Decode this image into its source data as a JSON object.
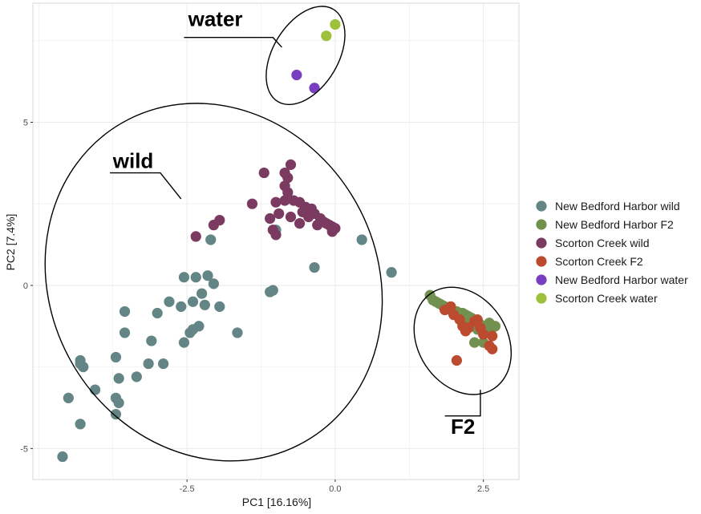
{
  "chart_data": {
    "type": "scatter",
    "title": "",
    "xlabel": "PC1 [16.16%]",
    "ylabel": "PC2 [7.4%]",
    "xlim": [
      -5.1,
      3.1
    ],
    "ylim": [
      -5.95,
      8.65
    ],
    "x_ticks": [
      -2.5,
      0.0,
      2.5
    ],
    "x_tick_labels": [
      "-2.5",
      "0.0",
      "2.5"
    ],
    "y_ticks": [
      -5,
      0,
      5
    ],
    "y_tick_labels": [
      "-5",
      "0",
      "5"
    ],
    "grid": true,
    "legend_position": "right",
    "series": [
      {
        "name": "New Bedford Harbor wild",
        "color": "#648585",
        "points": [
          [
            -4.6,
            -5.25
          ],
          [
            -4.5,
            -3.45
          ],
          [
            -4.3,
            -2.3
          ],
          [
            -4.3,
            -2.4
          ],
          [
            -4.25,
            -2.5
          ],
          [
            -4.3,
            -4.25
          ],
          [
            -4.05,
            -3.2
          ],
          [
            -3.7,
            -3.45
          ],
          [
            -3.7,
            -3.95
          ],
          [
            -3.65,
            -3.6
          ],
          [
            -3.7,
            -2.2
          ],
          [
            -3.65,
            -2.85
          ],
          [
            -3.55,
            -0.8
          ],
          [
            -3.55,
            -1.45
          ],
          [
            -3.35,
            -2.8
          ],
          [
            -3.15,
            -2.4
          ],
          [
            -3.1,
            -1.7
          ],
          [
            -3.0,
            -0.85
          ],
          [
            -2.9,
            -2.4
          ],
          [
            -2.8,
            -0.5
          ],
          [
            -2.6,
            -0.65
          ],
          [
            -2.55,
            -1.75
          ],
          [
            -2.45,
            -1.45
          ],
          [
            -2.4,
            -1.35
          ],
          [
            -2.4,
            -0.5
          ],
          [
            -2.3,
            -1.25
          ],
          [
            -2.35,
            0.25
          ],
          [
            -2.25,
            -0.25
          ],
          [
            -2.2,
            -0.6
          ],
          [
            -2.15,
            0.3
          ],
          [
            -2.1,
            1.4
          ],
          [
            -2.05,
            0.05
          ],
          [
            -1.95,
            -0.65
          ],
          [
            -2.55,
            0.25
          ],
          [
            -1.65,
            -1.45
          ],
          [
            -1.1,
            -0.2
          ],
          [
            -1.05,
            -0.15
          ],
          [
            -1.0,
            1.7
          ],
          [
            -0.35,
            0.55
          ],
          [
            0.45,
            1.4
          ],
          [
            0.95,
            0.4
          ]
        ]
      },
      {
        "name": "New Bedford Harbor F2",
        "color": "#729150",
        "points": [
          [
            1.6,
            -0.3
          ],
          [
            1.65,
            -0.45
          ],
          [
            1.7,
            -0.5
          ],
          [
            1.75,
            -0.55
          ],
          [
            1.8,
            -0.6
          ],
          [
            1.85,
            -0.65
          ],
          [
            1.9,
            -0.7
          ],
          [
            1.95,
            -0.75
          ],
          [
            2.05,
            -0.8
          ],
          [
            2.1,
            -0.85
          ],
          [
            2.15,
            -0.85
          ],
          [
            2.2,
            -0.9
          ],
          [
            2.25,
            -0.95
          ],
          [
            2.3,
            -1.0
          ],
          [
            2.35,
            -1.05
          ],
          [
            2.4,
            -1.1
          ],
          [
            2.45,
            -1.2
          ],
          [
            2.5,
            -1.25
          ],
          [
            2.55,
            -1.3
          ],
          [
            2.6,
            -1.15
          ],
          [
            2.65,
            -1.3
          ],
          [
            2.7,
            -1.25
          ],
          [
            2.4,
            -1.35
          ],
          [
            2.35,
            -1.75
          ],
          [
            2.5,
            -1.75
          ],
          [
            2.2,
            -1.25
          ],
          [
            2.15,
            -1.1
          ]
        ]
      },
      {
        "name": "Scorton Creek wild",
        "color": "#7b3b61",
        "points": [
          [
            -0.75,
            3.7
          ],
          [
            -0.85,
            3.45
          ],
          [
            -0.8,
            3.3
          ],
          [
            -0.85,
            3.05
          ],
          [
            -0.8,
            2.85
          ],
          [
            -0.85,
            2.6
          ],
          [
            -0.7,
            2.6
          ],
          [
            -0.6,
            2.55
          ],
          [
            -0.5,
            2.4
          ],
          [
            -0.4,
            2.35
          ],
          [
            -0.35,
            2.2
          ],
          [
            -0.25,
            2.05
          ],
          [
            -0.2,
            1.95
          ],
          [
            -0.15,
            1.9
          ],
          [
            -0.1,
            1.85
          ],
          [
            -0.05,
            1.8
          ],
          [
            0.0,
            1.75
          ],
          [
            -0.55,
            2.25
          ],
          [
            -0.45,
            2.1
          ],
          [
            -0.6,
            1.9
          ],
          [
            -0.75,
            2.1
          ],
          [
            -0.95,
            2.2
          ],
          [
            -1.0,
            2.55
          ],
          [
            -1.1,
            2.05
          ],
          [
            -1.05,
            1.7
          ],
          [
            -1.0,
            1.55
          ],
          [
            -1.4,
            2.5
          ],
          [
            -1.2,
            3.45
          ],
          [
            -1.95,
            2.0
          ],
          [
            -2.05,
            1.85
          ],
          [
            -2.35,
            1.5
          ],
          [
            -0.2,
            1.95
          ],
          [
            -0.3,
            1.85
          ],
          [
            -0.05,
            1.65
          ]
        ]
      },
      {
        "name": "Scorton Creek F2",
        "color": "#bb4a2e",
        "points": [
          [
            1.85,
            -0.75
          ],
          [
            1.95,
            -0.65
          ],
          [
            2.0,
            -0.9
          ],
          [
            2.1,
            -1.05
          ],
          [
            2.15,
            -1.25
          ],
          [
            2.2,
            -1.4
          ],
          [
            2.25,
            -1.3
          ],
          [
            2.35,
            -1.1
          ],
          [
            2.4,
            -1.05
          ],
          [
            2.45,
            -1.3
          ],
          [
            2.5,
            -1.5
          ],
          [
            2.65,
            -1.55
          ],
          [
            2.6,
            -1.85
          ],
          [
            2.65,
            -1.95
          ],
          [
            2.05,
            -2.3
          ]
        ]
      },
      {
        "name": "New Bedford Harbor water",
        "color": "#7a3fc0",
        "points": [
          [
            -0.65,
            6.45
          ],
          [
            -0.35,
            6.05
          ]
        ]
      },
      {
        "name": "Scorton Creek water",
        "color": "#9fc03c",
        "points": [
          [
            -0.15,
            7.65
          ],
          [
            0.0,
            8.0
          ]
        ]
      }
    ],
    "annotations": [
      {
        "label": "water",
        "color": "#000000",
        "label_pos": [
          -2.48,
          7.95
        ],
        "leader": [
          [
            -2.55,
            7.6
          ],
          [
            -1.05,
            7.6
          ],
          [
            -0.9,
            7.3
          ]
        ]
      },
      {
        "label": "wild",
        "color": "#000000",
        "label_pos": [
          -3.75,
          3.6
        ],
        "leader": [
          [
            -3.8,
            3.45
          ],
          [
            -2.95,
            3.45
          ],
          [
            -2.6,
            2.65
          ]
        ]
      },
      {
        "label": "F2",
        "color": "#000000",
        "label_pos": [
          1.95,
          -4.55
        ],
        "leader": [
          [
            1.85,
            -4.0
          ],
          [
            2.45,
            -4.0
          ],
          [
            2.45,
            -3.2
          ]
        ]
      }
    ],
    "ellipses": [
      {
        "group": "water",
        "center": [
          -0.5,
          7.05
        ],
        "rx": 0.55,
        "ry": 1.65,
        "rotation_deg": 31
      },
      {
        "group": "wild",
        "center": [
          -2.05,
          0.1
        ],
        "rx": 3.1,
        "ry": 5.0,
        "rotation_deg": 60
      },
      {
        "group": "F2",
        "center": [
          2.15,
          -1.7
        ],
        "rx": 0.75,
        "ry": 1.75,
        "rotation_deg": -33
      }
    ]
  }
}
